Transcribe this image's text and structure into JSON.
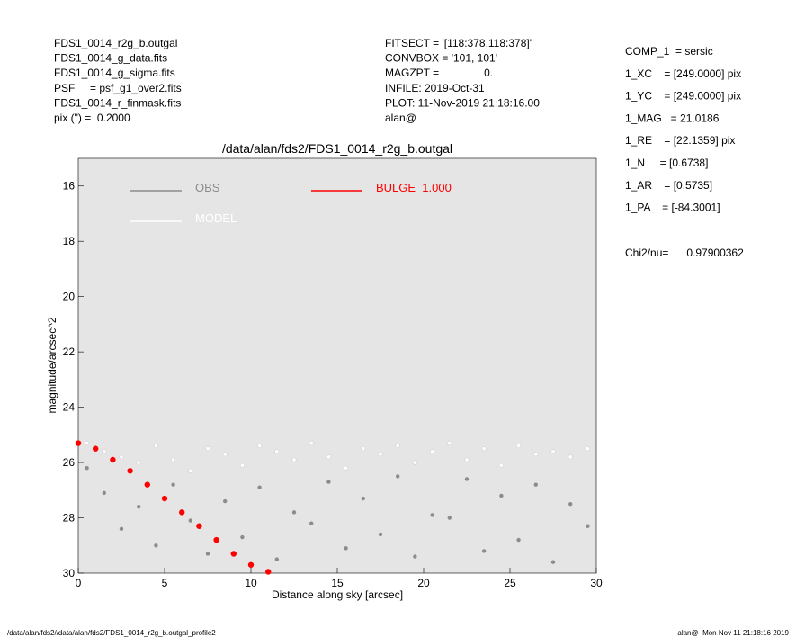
{
  "header": {
    "left": [
      "FDS1_0014_r2g_b.outgal",
      "FDS1_0014_g_data.fits",
      "FDS1_0014_g_sigma.fits",
      "PSF     = psf_g1_over2.fits",
      "FDS1_0014_r_finmask.fits",
      "pix (\") =  0.2000"
    ],
    "middle": [
      "FITSECT = '[118:378,118:378]'",
      "CONVBOX = '101, 101'",
      "MAGZPT =               0.",
      "INFILE: 2019-Oct-31",
      "PLOT: 11-Nov-2019 21:18:16.00",
      "alan@"
    ],
    "right": [
      "COMP_1  = sersic",
      "1_XC    = [249.0000] pix",
      "1_YC    = [249.0000] pix",
      "1_MAG   = 21.0186",
      "1_RE    = [22.1359] pix",
      "1_N     = [0.6738]",
      "1_AR    = [0.5735]",
      "1_PA    = [-84.3001]"
    ],
    "chi2": "Chi2/nu=      0.97900362"
  },
  "footer": {
    "left": "/data/alan/fds2//data/alan/fds2/FDS1_0014_r2g_b.outgal_profile2",
    "right": "alan@  Mon Nov 11 21:18:16 2019"
  },
  "chart_data": {
    "type": "scatter",
    "title": "/data/alan/fds2/FDS1_0014_r2g_b.outgal",
    "x_label": "Distance along sky [arcsec]",
    "y_label": "magnitude/arcsec^2",
    "xlim": [
      0,
      30
    ],
    "xticks": [
      0,
      5,
      10,
      15,
      20,
      25,
      30
    ],
    "ylim": [
      30,
      15
    ],
    "yticks": [
      16,
      18,
      20,
      22,
      24,
      26,
      28,
      30
    ],
    "series": [
      {
        "name": "OBS",
        "color": "#8c8c8c",
        "x": [
          0.5,
          1.5,
          2.5,
          3.5,
          4.5,
          5.5,
          6.5,
          7.5,
          8.5,
          9.5,
          10.5,
          11.5,
          12.5,
          13.5,
          14.5,
          15.5,
          16.5,
          17.5,
          18.5,
          19.5,
          20.5,
          21.5,
          22.5,
          23.5,
          24.5,
          25.5,
          26.5,
          27.5,
          28.5,
          29.5
        ],
        "values": [
          26.2,
          27.1,
          28.4,
          27.6,
          29.0,
          26.8,
          28.1,
          29.3,
          27.4,
          28.7,
          26.9,
          29.5,
          27.8,
          28.2,
          26.7,
          29.1,
          27.3,
          28.6,
          26.5,
          29.4,
          27.9,
          28.0,
          26.6,
          29.2,
          27.2,
          28.8,
          26.8,
          29.6,
          27.5,
          28.3
        ]
      },
      {
        "name": "MODEL",
        "color": "#ffffff",
        "x": [
          0.5,
          1.5,
          2.5,
          3.5,
          4.5,
          5.5,
          6.5,
          7.5,
          8.5,
          9.5,
          10.5,
          11.5,
          12.5,
          13.5,
          14.5,
          15.5,
          16.5,
          17.5,
          18.5,
          19.5,
          20.5,
          21.5,
          22.5,
          23.5,
          24.5,
          25.5,
          26.5,
          27.5,
          28.5,
          29.5
        ],
        "values": [
          25.3,
          25.6,
          25.8,
          26.0,
          25.4,
          25.9,
          26.3,
          25.5,
          25.7,
          26.1,
          25.4,
          25.6,
          25.9,
          25.3,
          25.8,
          26.2,
          25.5,
          25.7,
          25.4,
          26.0,
          25.6,
          25.3,
          25.9,
          25.5,
          26.1,
          25.4,
          25.7,
          25.6,
          25.8,
          25.5
        ]
      },
      {
        "name": "BULGE  1.000",
        "color": "#ff0000",
        "x": [
          0,
          1,
          2,
          3,
          4,
          5,
          6,
          7,
          8,
          9,
          10,
          11
        ],
        "values": [
          25.3,
          25.5,
          25.9,
          26.3,
          26.8,
          27.3,
          27.8,
          28.3,
          28.8,
          29.3,
          29.7,
          29.95
        ]
      }
    ]
  }
}
